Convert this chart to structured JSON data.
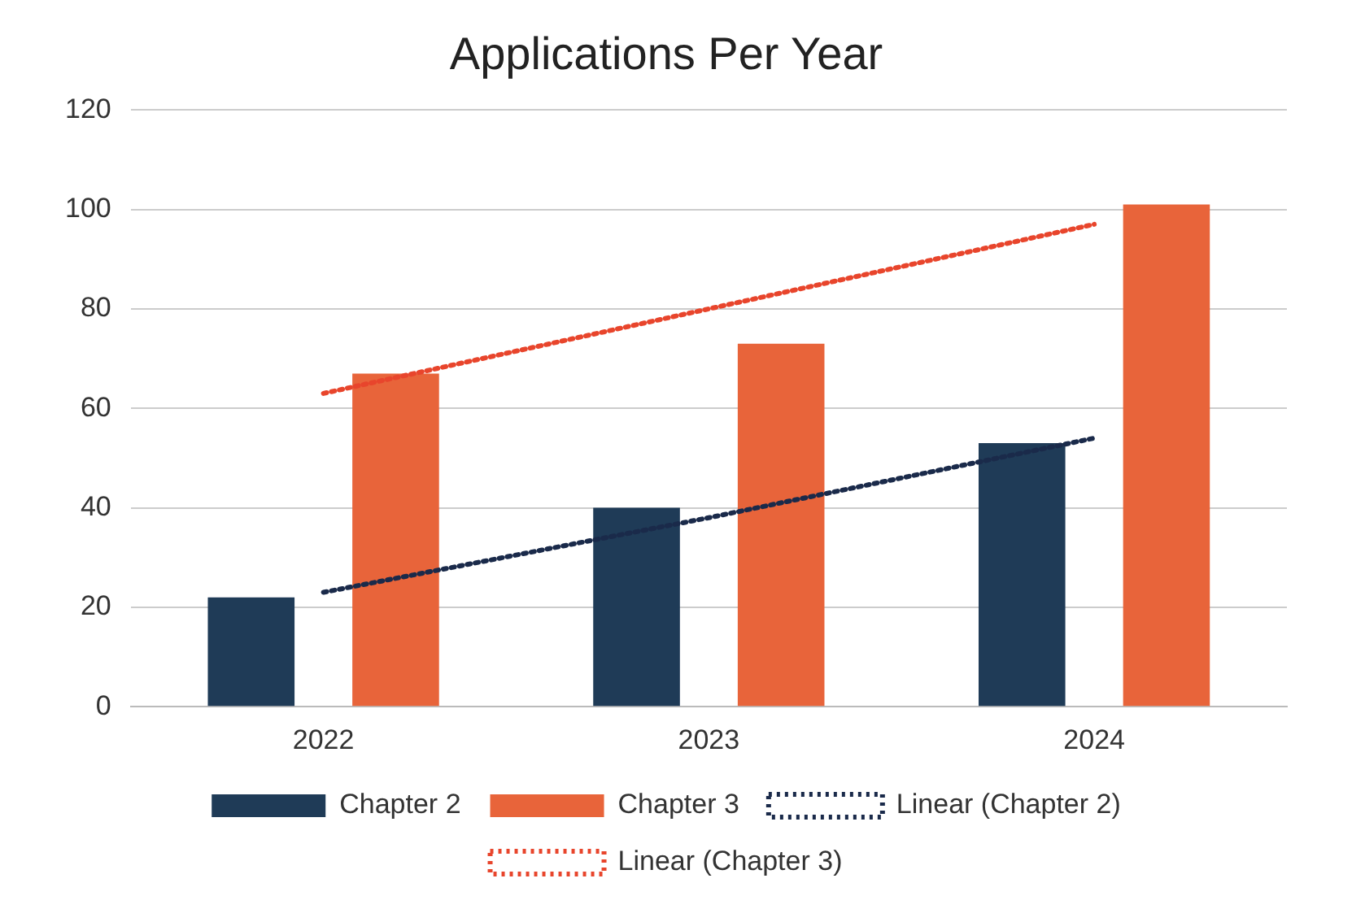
{
  "chart_data": {
    "type": "bar",
    "title": "Applications Per Year",
    "categories": [
      "2022",
      "2023",
      "2024"
    ],
    "series": [
      {
        "name": "Chapter 2",
        "color": "#1f3b57",
        "values": [
          22,
          40,
          53
        ]
      },
      {
        "name": "Chapter 3",
        "color": "#e8643a",
        "values": [
          67,
          73,
          101
        ]
      },
      {
        "name": "Linear (Chapter 2)",
        "type": "line",
        "color": "#1a2a4a",
        "values": [
          23,
          38,
          54
        ],
        "line_style": "dotted",
        "marker": "none"
      },
      {
        "name": "Linear (Chapter 3)",
        "type": "line",
        "color": "#e8452c",
        "values": [
          63,
          80,
          97
        ],
        "line_style": "dotted",
        "marker": "none"
      }
    ],
    "ylim": [
      0,
      120
    ],
    "yticks": [
      0,
      20,
      40,
      60,
      80,
      100,
      120
    ],
    "grid": "y",
    "legend": "bottom"
  }
}
